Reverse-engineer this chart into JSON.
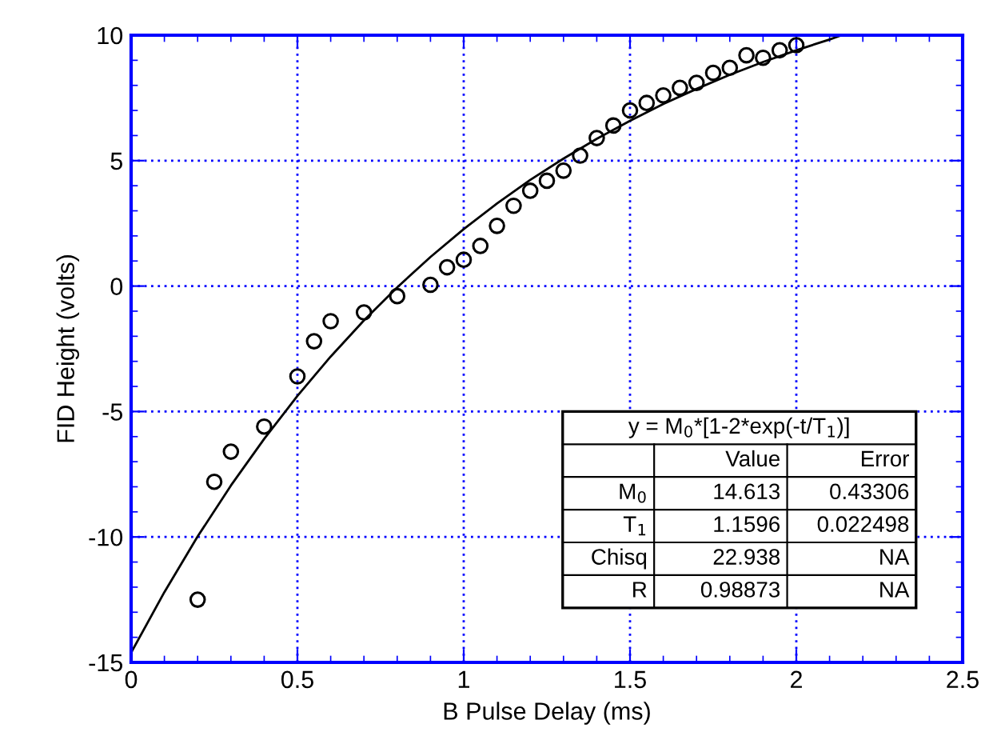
{
  "chart_data": {
    "type": "scatter",
    "xlabel": "B Pulse Delay (ms)",
    "ylabel": "FID Height (volts)",
    "xlim": [
      0,
      2.5
    ],
    "xticks": [
      0,
      0.5,
      1,
      1.5,
      2,
      2.5
    ],
    "ylim": [
      -15,
      10
    ],
    "yticks": [
      -15,
      -10,
      -5,
      0,
      5,
      10
    ],
    "grid": true,
    "legend": false,
    "series": [
      {
        "marker": "circle",
        "color": "#000000",
        "x": [
          0.2,
          0.25,
          0.3,
          0.4,
          0.5,
          0.55,
          0.6,
          0.7,
          0.8,
          0.9,
          0.95,
          1.0,
          1.05,
          1.1,
          1.15,
          1.2,
          1.25,
          1.3,
          1.35,
          1.4,
          1.45,
          1.5,
          1.55,
          1.6,
          1.65,
          1.7,
          1.75,
          1.8,
          1.85,
          1.9,
          1.95,
          2.0
        ],
        "values": [
          -12.5,
          -7.8,
          -6.6,
          -5.6,
          -3.6,
          -2.2,
          -1.4,
          -1.05,
          -0.4,
          0.05,
          0.75,
          1.05,
          1.6,
          2.4,
          3.2,
          3.8,
          4.2,
          4.6,
          5.2,
          5.9,
          6.4,
          7.0,
          7.3,
          7.6,
          7.9,
          8.1,
          8.5,
          8.7,
          9.2,
          9.1,
          9.4,
          9.6
        ]
      },
      {
        "type": "line",
        "marker": "none",
        "line_style": "solid",
        "color": "#000000",
        "x": [
          0,
          0.1,
          0.2,
          0.3,
          0.4,
          0.5,
          0.6,
          0.7,
          0.8,
          0.9,
          1.0,
          1.1,
          1.2,
          1.3,
          1.4,
          1.5,
          1.6,
          1.7,
          1.8,
          1.9,
          2.0,
          2.1,
          2.13
        ],
        "values": [
          -14.61,
          -12.2,
          -9.98,
          -7.95,
          -6.09,
          -4.38,
          -2.81,
          -1.37,
          -0.05,
          1.16,
          2.27,
          3.29,
          4.23,
          5.08,
          5.87,
          6.59,
          7.26,
          7.86,
          8.42,
          8.93,
          9.4,
          9.83,
          9.97
        ]
      }
    ],
    "annotations": [
      "y = M$_{0}$*[1-2*exp(-t/T$_{1}$)]",
      "Value",
      "Error",
      "M$_{0}$",
      "14.613",
      "0.43306",
      "T$_{1}$",
      "1.1596",
      "0.022498",
      "Chisq",
      "22.938",
      "NA",
      "R",
      "0.98873",
      "NA"
    ]
  }
}
